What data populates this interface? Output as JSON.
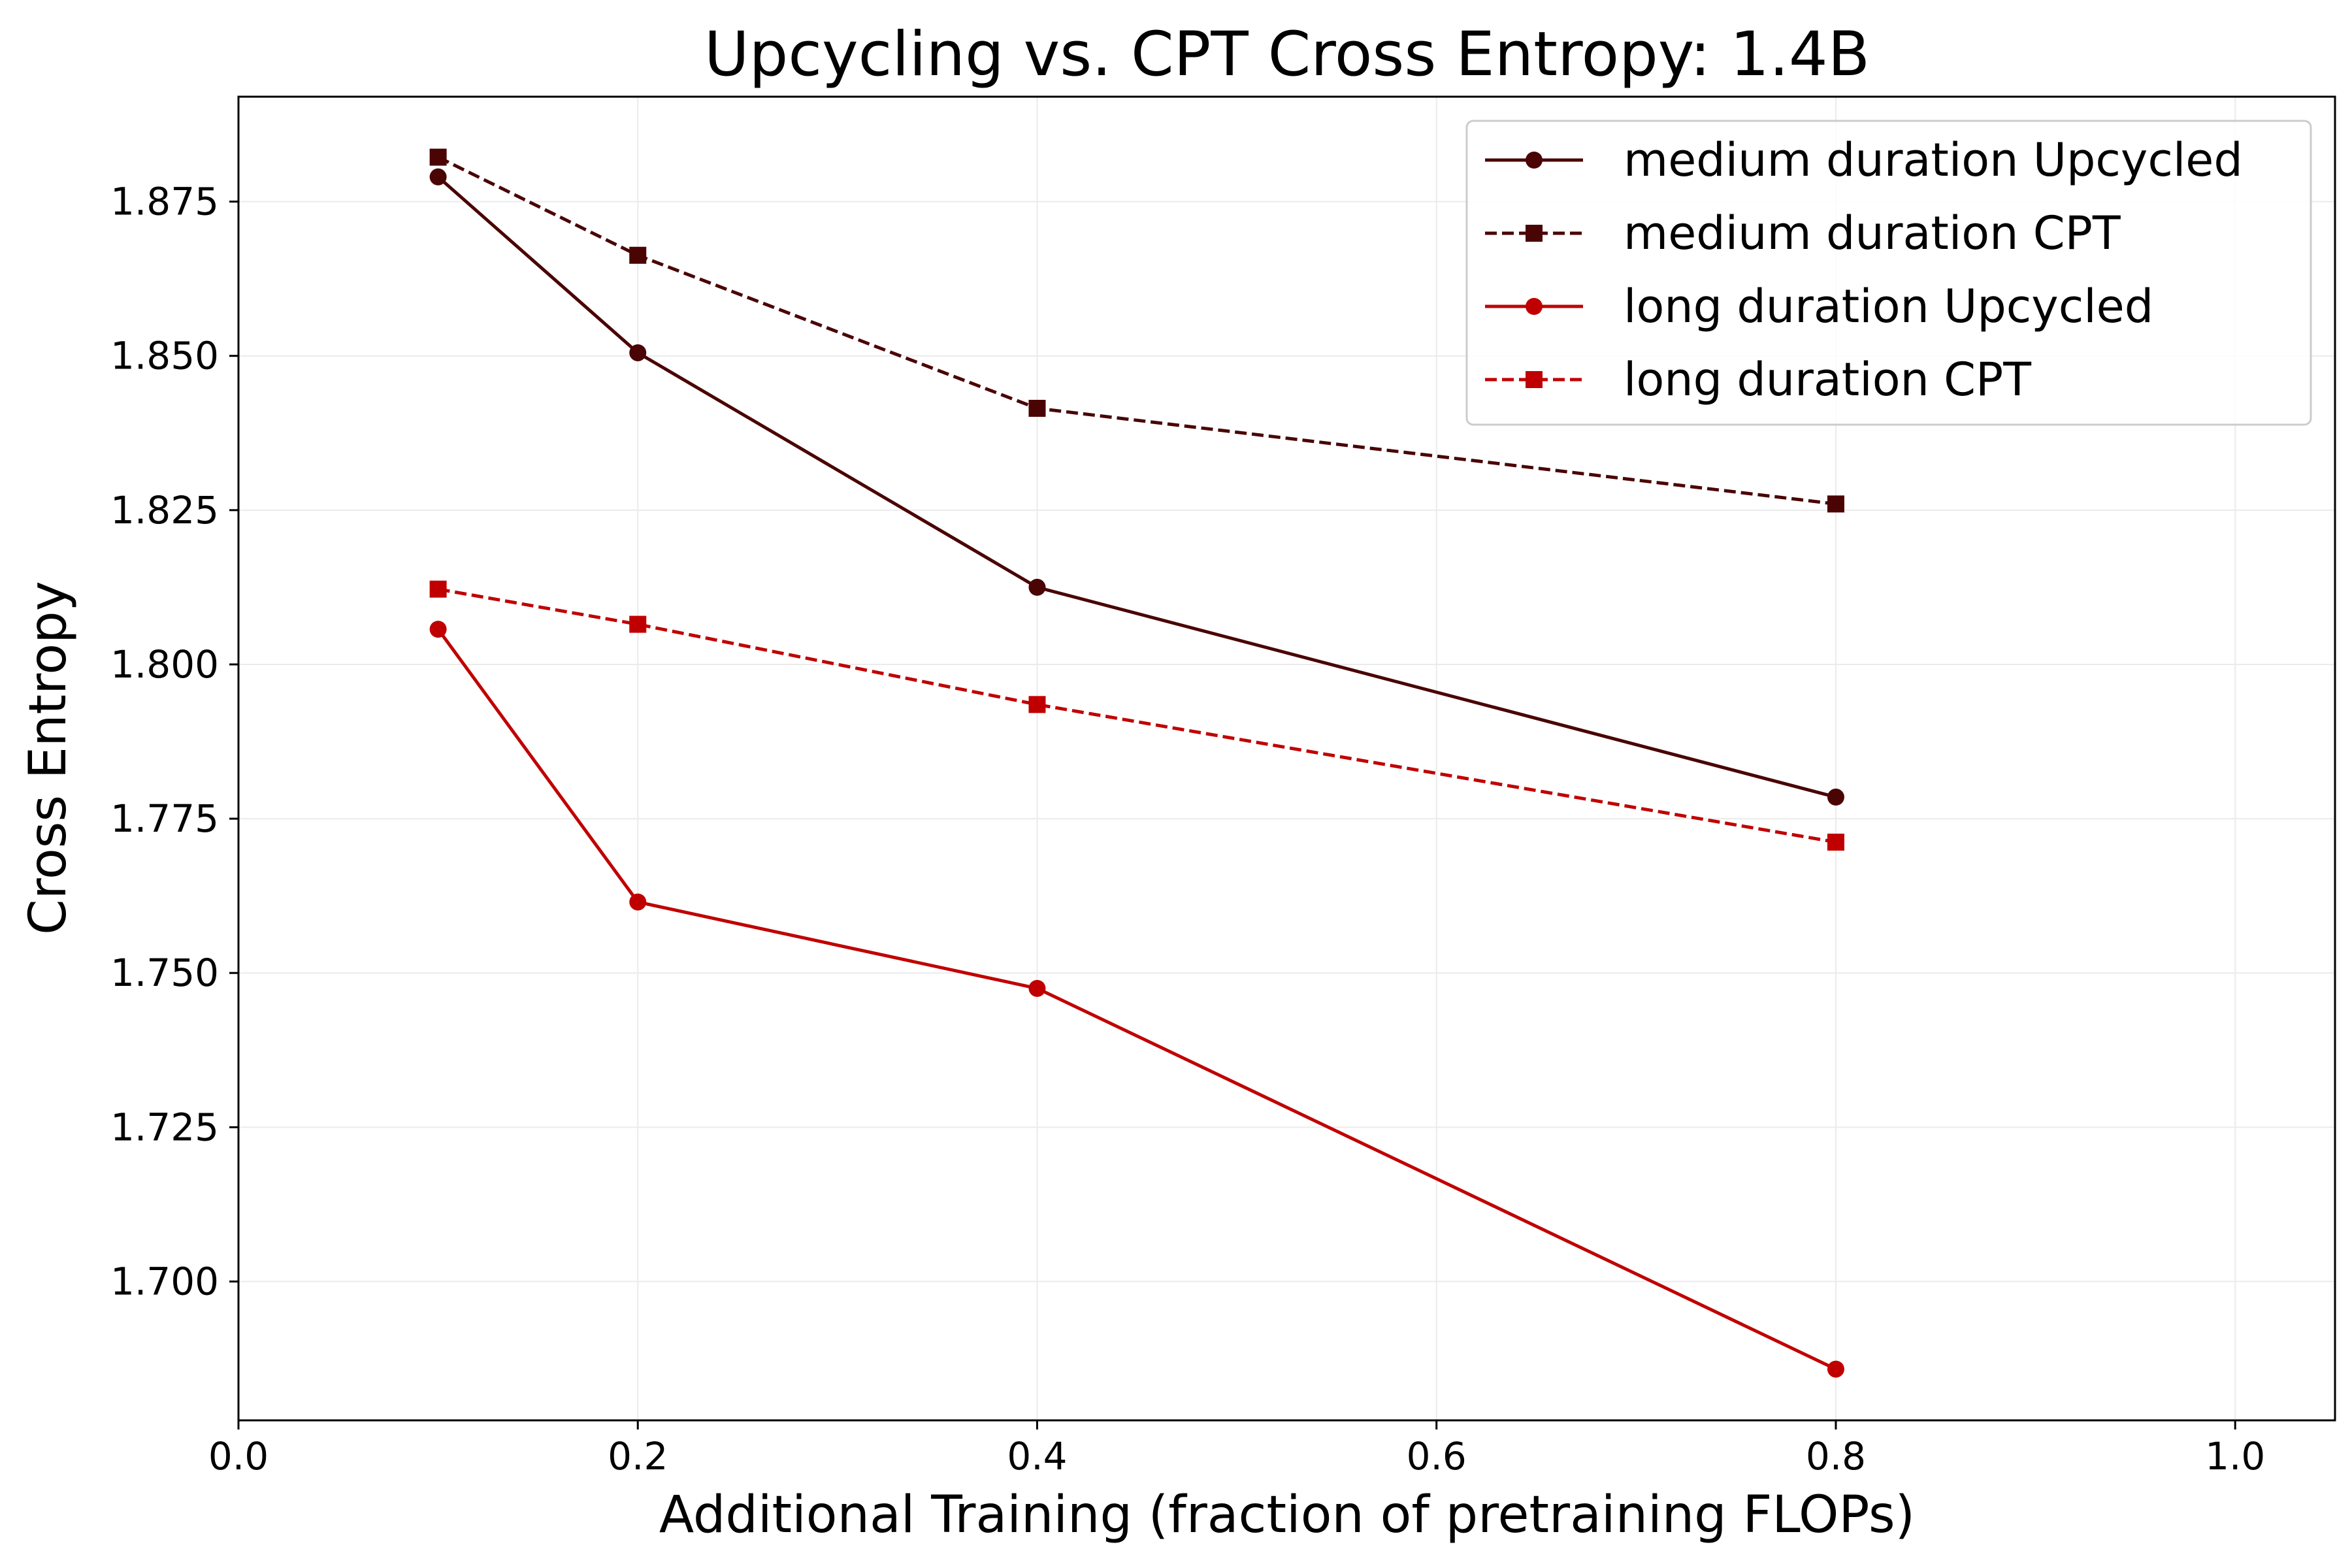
{
  "chart_data": {
    "type": "line",
    "title": "Upcycling vs. CPT Cross Entropy: 1.4B",
    "xlabel": "Additional Training (fraction of pretraining FLOPs)",
    "ylabel": "Cross Entropy",
    "xlim": [
      0.0,
      1.05
    ],
    "ylim": [
      1.6775,
      1.892
    ],
    "xticks": [
      "0.0",
      "0.2",
      "0.4",
      "0.6",
      "0.8",
      "1.0"
    ],
    "xtick_values": [
      0.0,
      0.2,
      0.4,
      0.6,
      0.8,
      1.0
    ],
    "yticks": [
      "1.700",
      "1.725",
      "1.750",
      "1.775",
      "1.800",
      "1.825",
      "1.850",
      "1.875"
    ],
    "ytick_values": [
      1.7,
      1.725,
      1.75,
      1.775,
      1.8,
      1.825,
      1.85,
      1.875
    ],
    "grid": true,
    "legend_position": "top-right",
    "series": [
      {
        "name": "medium duration Upcycled",
        "color": "#4a0404",
        "linestyle": "solid",
        "marker": "circle",
        "x": [
          0.1,
          0.2,
          0.4,
          0.8
        ],
        "values": [
          1.879,
          1.8505,
          1.8125,
          1.7785
        ]
      },
      {
        "name": "medium duration CPT",
        "color": "#4a0404",
        "linestyle": "dashed",
        "marker": "square",
        "x": [
          0.1,
          0.2,
          0.4,
          0.8
        ],
        "values": [
          1.8822,
          1.8663,
          1.8415,
          1.826
        ]
      },
      {
        "name": "long duration Upcycled",
        "color": "#c00000",
        "linestyle": "solid",
        "marker": "circle",
        "x": [
          0.1,
          0.2,
          0.4,
          0.8
        ],
        "values": [
          1.8057,
          1.7615,
          1.7475,
          1.6858
        ]
      },
      {
        "name": "long duration CPT",
        "color": "#c00000",
        "linestyle": "dashed",
        "marker": "square",
        "x": [
          0.1,
          0.2,
          0.4,
          0.8
        ],
        "values": [
          1.8122,
          1.8065,
          1.7935,
          1.7712
        ]
      }
    ]
  }
}
